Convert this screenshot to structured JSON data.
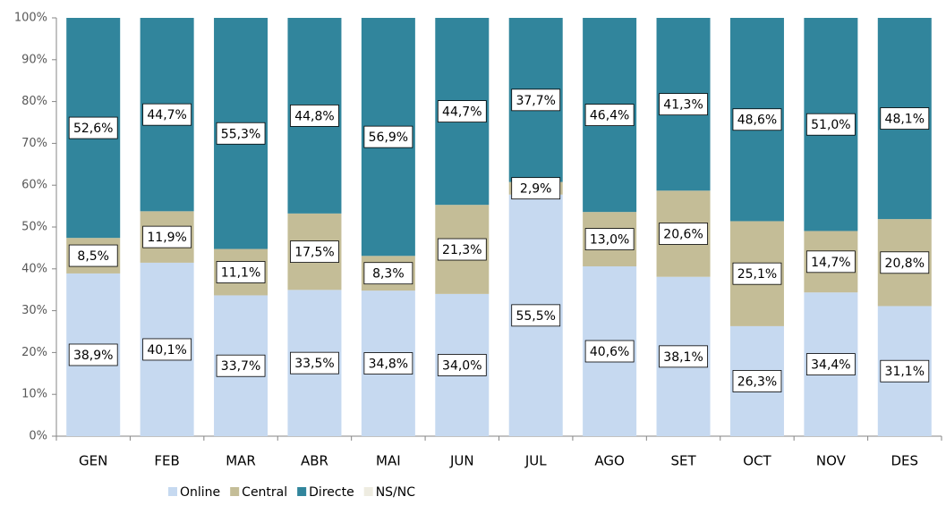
{
  "chart_data": {
    "type": "stacked_bar_percent",
    "categories": [
      "GEN",
      "FEB",
      "MAR",
      "ABR",
      "MAI",
      "JUN",
      "JUL",
      "AGO",
      "SET",
      "OCT",
      "NOV",
      "DES"
    ],
    "series": [
      {
        "name": "Online",
        "color": "#c6d9f0",
        "values": [
          38.9,
          40.1,
          33.7,
          33.5,
          34.8,
          34.0,
          55.5,
          40.6,
          38.1,
          26.3,
          34.4,
          31.1
        ],
        "value_labels": [
          "38,9%",
          "40,1%",
          "33,7%",
          "33,5%",
          "34,8%",
          "34,0%",
          "55,5%",
          "40,6%",
          "38,1%",
          "26,3%",
          "34,4%",
          "31,1%"
        ]
      },
      {
        "name": "Central",
        "color": "#c4bd97",
        "values": [
          8.5,
          11.9,
          11.1,
          17.5,
          8.3,
          21.3,
          2.9,
          13.0,
          20.6,
          25.1,
          14.7,
          20.8
        ],
        "value_labels": [
          "8,5%",
          "11,9%",
          "11,1%",
          "17,5%",
          "8,3%",
          "21,3%",
          "2,9%",
          "13,0%",
          "20,6%",
          "25,1%",
          "14,7%",
          "20,8%"
        ]
      },
      {
        "name": "Directe",
        "color": "#31859c",
        "values": [
          52.6,
          44.7,
          55.3,
          44.8,
          56.9,
          44.7,
          37.7,
          46.4,
          41.3,
          48.6,
          51.0,
          48.1
        ],
        "value_labels": [
          "52,6%",
          "44,7%",
          "55,3%",
          "44,8%",
          "56,9%",
          "44,7%",
          "37,7%",
          "46,4%",
          "41,3%",
          "48,6%",
          "51,0%",
          "48,1%"
        ]
      },
      {
        "name": "NS/NC",
        "color": "#eeece1",
        "values": [
          null,
          null,
          null,
          null,
          null,
          null,
          null,
          null,
          null,
          null,
          null,
          null
        ]
      }
    ],
    "ylim": [
      0,
      100
    ],
    "yticks": [
      {
        "value": 0,
        "label": "0%"
      },
      {
        "value": 10,
        "label": "10%"
      },
      {
        "value": 20,
        "label": "20%"
      },
      {
        "value": 30,
        "label": "30%"
      },
      {
        "value": 40,
        "label": "40%"
      },
      {
        "value": 50,
        "label": "50%"
      },
      {
        "value": 60,
        "label": "60%"
      },
      {
        "value": 70,
        "label": "70%"
      },
      {
        "value": 80,
        "label": "80%"
      },
      {
        "value": 90,
        "label": "90%"
      },
      {
        "value": 100,
        "label": "100%"
      }
    ],
    "legend": "bottom"
  }
}
